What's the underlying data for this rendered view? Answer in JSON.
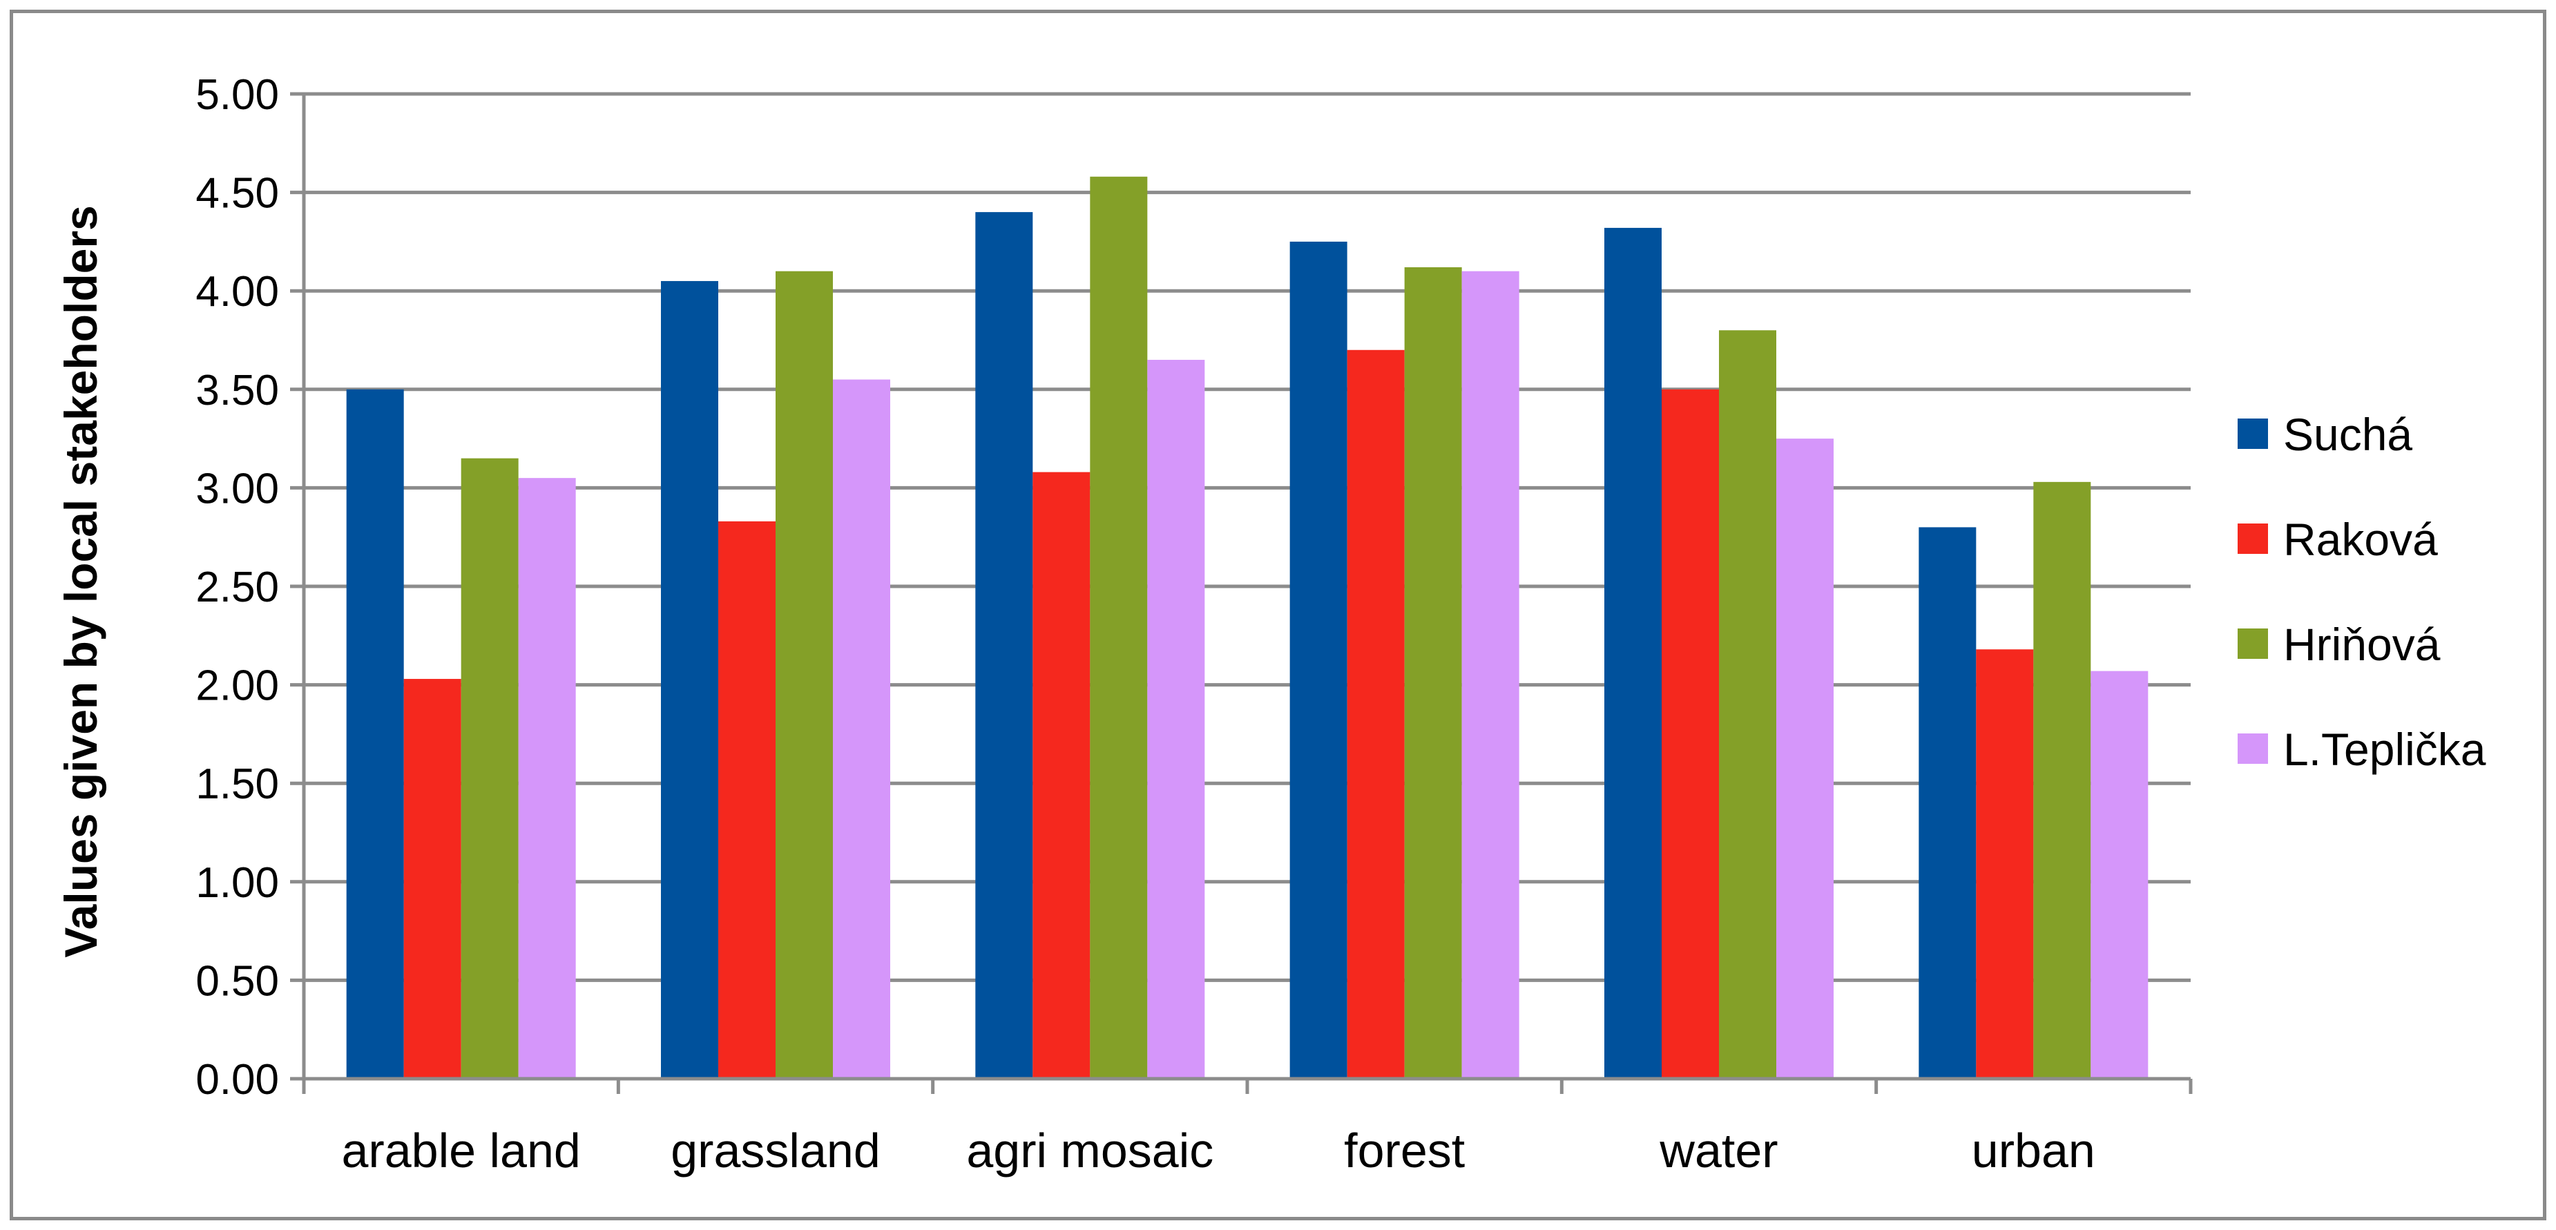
{
  "chart_data": {
    "type": "bar",
    "title": "",
    "xlabel": "",
    "ylabel": "Values given by local stakeholders",
    "ylim": [
      0,
      5
    ],
    "yticks": [
      "0.00",
      "0.50",
      "1.00",
      "1.50",
      "2.00",
      "2.50",
      "3.00",
      "3.50",
      "4.00",
      "4.50",
      "5.00"
    ],
    "grid": true,
    "legend_position": "right",
    "categories": [
      "arable land",
      "grassland",
      "agri mosaic",
      "forest",
      "water",
      "urban"
    ],
    "series": [
      {
        "name": "Suchá",
        "color": "#00519c",
        "values": [
          3.5,
          4.05,
          4.4,
          4.25,
          4.32,
          2.8
        ]
      },
      {
        "name": "Raková",
        "color": "#f5281e",
        "values": [
          2.03,
          2.83,
          3.08,
          3.7,
          3.5,
          2.18
        ]
      },
      {
        "name": "Hriňová",
        "color": "#84a028",
        "values": [
          3.15,
          4.1,
          4.58,
          4.12,
          3.8,
          3.03
        ]
      },
      {
        "name": "L.Teplička",
        "color": "#d596fa",
        "values": [
          3.05,
          3.55,
          3.65,
          4.1,
          3.25,
          2.07
        ]
      }
    ]
  }
}
